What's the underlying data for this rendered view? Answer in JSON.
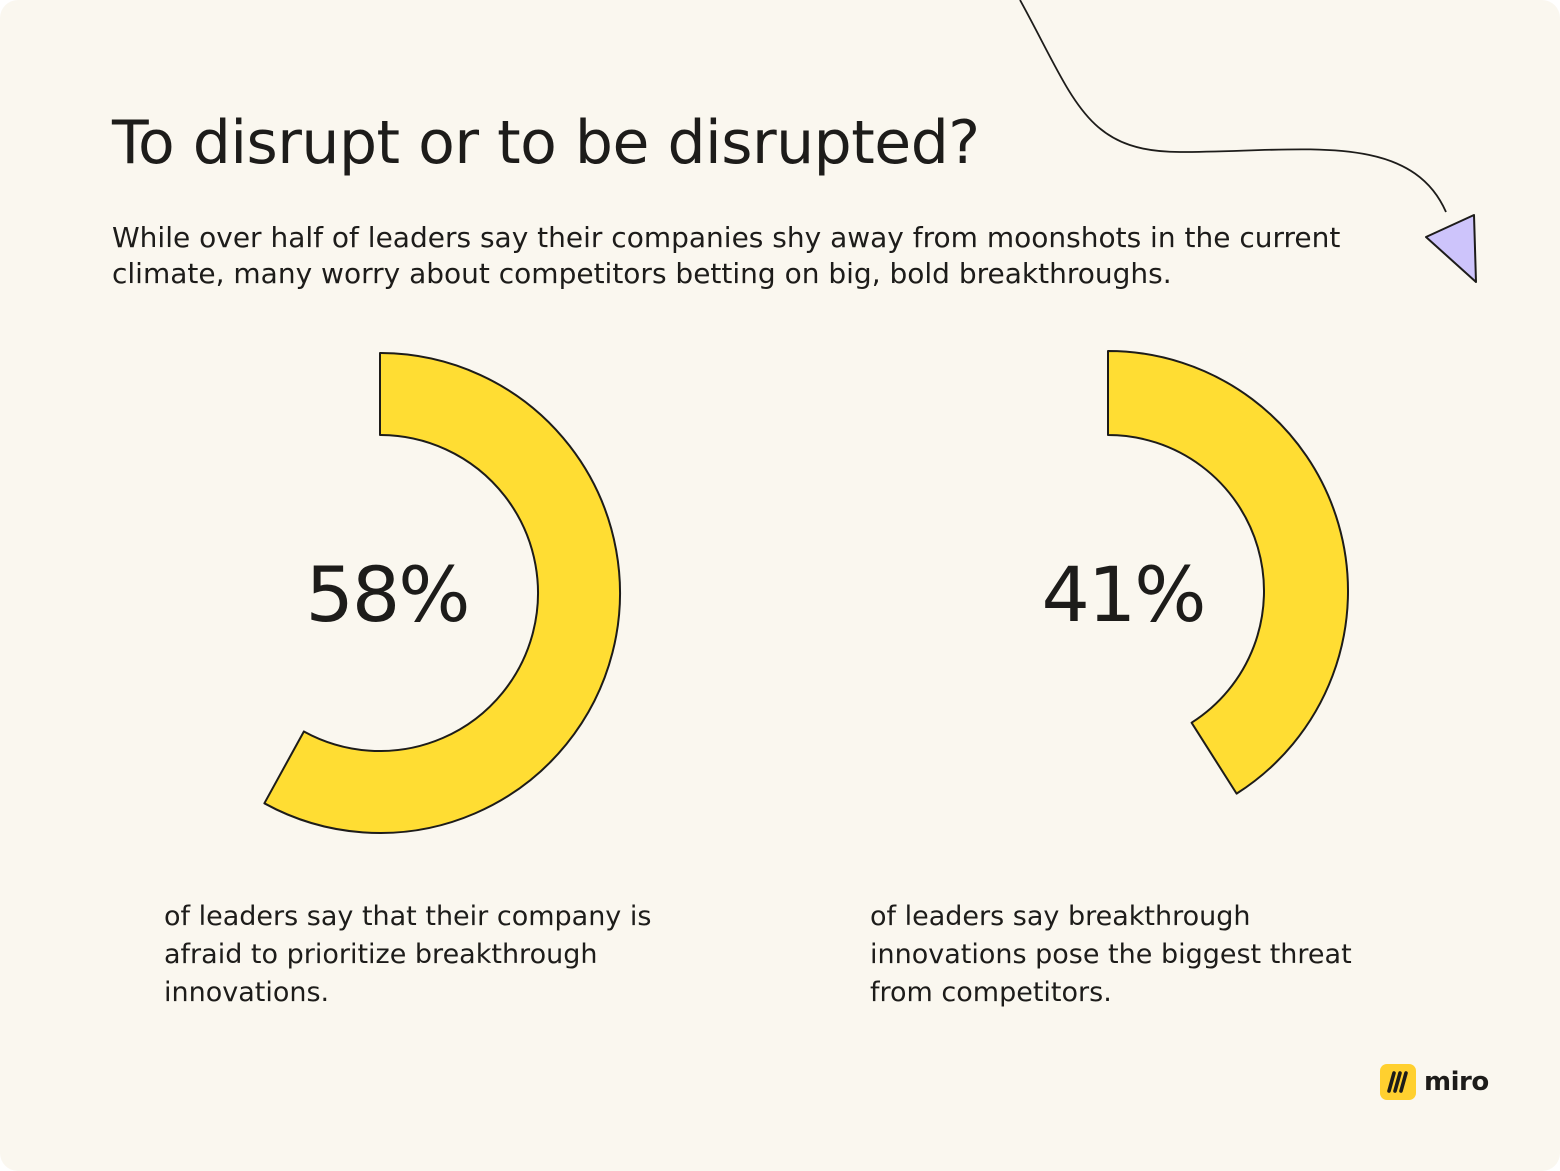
{
  "header": {
    "title": "To disrupt or to be disrupted?",
    "subtitle": "While over half of leaders say their companies shy away from moonshots in the current climate, many worry about competitors betting on big, bold breakthroughs."
  },
  "chart_data": [
    {
      "type": "pie",
      "value": 58,
      "unit": "%",
      "label": "58%",
      "caption": "of leaders say that their company is afraid to prioritize breakthrough innovations."
    },
    {
      "type": "pie",
      "value": 41,
      "unit": "%",
      "label": "41%",
      "caption": "of leaders say breakthrough innovations pose the biggest threat from competitors."
    }
  ],
  "colors": {
    "background": "#faf7ef",
    "accent_yellow": "#ffdd33",
    "arrow_purple": "#cdc4fb",
    "text": "#1d1c1a"
  },
  "decorations": {
    "arrow_icon": "curved-arrow-icon"
  },
  "logo": {
    "text": "miro"
  }
}
